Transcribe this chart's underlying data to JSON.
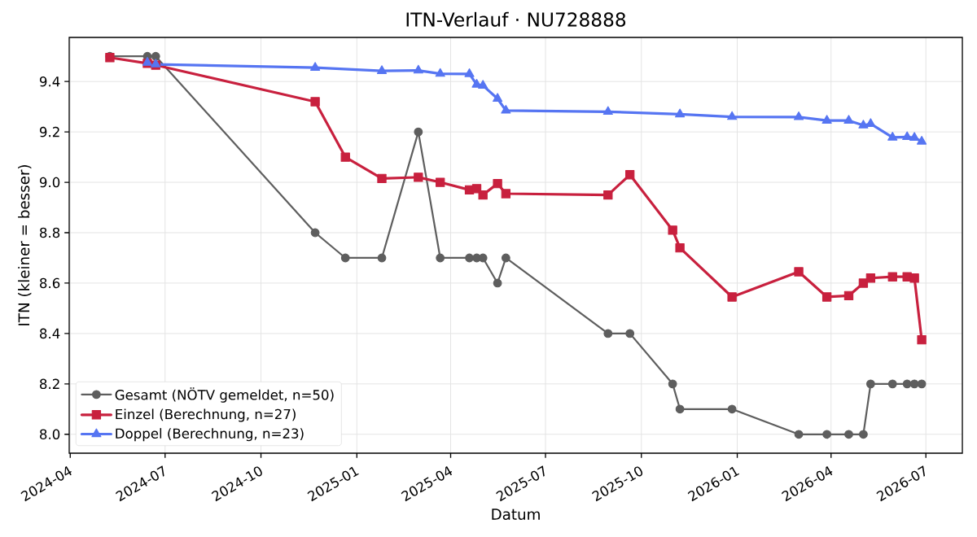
{
  "chart_data": {
    "type": "line",
    "title": "ITN-Verlauf · NU728888",
    "xlabel": "Datum",
    "ylabel": "ITN (kleiner = besser)",
    "xlim": [
      "2024-03-31",
      "2026-08-05"
    ],
    "xticks": [
      "2024-04",
      "2024-07",
      "2024-10",
      "2025-01",
      "2025-04",
      "2025-07",
      "2025-10",
      "2026-01",
      "2026-04",
      "2026-07"
    ],
    "ylim": [
      7.925,
      9.575
    ],
    "yticks": [
      {
        "value": 8,
        "label": "8.0"
      },
      8.2,
      8.4,
      8.6,
      8.8,
      {
        "value": 9,
        "label": "9.0"
      },
      9.2,
      9.4
    ],
    "grid": true,
    "legend": "bottom left",
    "line_style": "solid",
    "series": [
      {
        "name": "Gesamt (NÖTV gemeldet, n=50)",
        "color": "#5e5e5e",
        "marker": "circle",
        "x": [
          "2024-05-09",
          "2024-06-14",
          "2024-06-22",
          "2024-11-22",
          "2024-12-21",
          "2025-01-25",
          "2025-03-01",
          "2025-03-22",
          "2025-04-19",
          "2025-04-26",
          "2025-05-02",
          "2025-05-16",
          "2025-05-24",
          "2025-08-30",
          "2025-09-20",
          "2025-10-31",
          "2025-11-07",
          "2025-12-27",
          "2026-03-01",
          "2026-03-28",
          "2026-04-18",
          "2026-05-02",
          "2026-05-09",
          "2026-05-30",
          "2026-06-13",
          "2026-06-20",
          "2026-06-27"
        ],
        "values": [
          9.5,
          9.5,
          9.5,
          8.8,
          8.7,
          8.7,
          9.2,
          8.7,
          8.7,
          8.7,
          8.7,
          8.6,
          8.7,
          8.4,
          8.4,
          8.2,
          8.1,
          8.1,
          8.0,
          8.0,
          8.0,
          8.0,
          8.2,
          8.2,
          8.2,
          8.2,
          8.2
        ]
      },
      {
        "name": "Einzel (Berechnung, n=27)",
        "color": "#c8203e",
        "marker": "square",
        "x": [
          "2024-05-09",
          "2024-06-14",
          "2024-06-22",
          "2024-11-22",
          "2024-12-21",
          "2025-01-25",
          "2025-03-01",
          "2025-03-22",
          "2025-04-19",
          "2025-04-26",
          "2025-05-02",
          "2025-05-16",
          "2025-05-24",
          "2025-08-30",
          "2025-09-20",
          "2025-10-31",
          "2025-11-07",
          "2025-12-27",
          "2026-03-01",
          "2026-03-28",
          "2026-04-18",
          "2026-05-02",
          "2026-05-09",
          "2026-05-30",
          "2026-06-13",
          "2026-06-20",
          "2026-06-27"
        ],
        "values": [
          9.495,
          9.472,
          9.465,
          9.32,
          9.1,
          9.015,
          9.02,
          9.0,
          8.97,
          8.975,
          8.95,
          8.995,
          8.955,
          8.95,
          9.03,
          8.81,
          8.74,
          8.545,
          8.645,
          8.545,
          8.55,
          8.6,
          8.62,
          8.625,
          8.625,
          8.62,
          8.375
        ]
      },
      {
        "name": "Doppel (Berechnung, n=23)",
        "color": "#5675f2",
        "marker": "triangle",
        "x": [
          "2024-06-14",
          "2024-06-22",
          "2024-11-22",
          "2025-01-25",
          "2025-03-01",
          "2025-03-22",
          "2025-04-19",
          "2025-04-26",
          "2025-05-02",
          "2025-05-16",
          "2025-05-24",
          "2025-08-30",
          "2025-11-07",
          "2025-12-27",
          "2026-03-01",
          "2026-03-28",
          "2026-04-18",
          "2026-05-02",
          "2026-05-09",
          "2026-05-30",
          "2026-06-13",
          "2026-06-20",
          "2026-06-27"
        ],
        "values": [
          9.475,
          9.468,
          9.455,
          9.442,
          9.444,
          9.431,
          9.43,
          9.388,
          9.384,
          9.332,
          9.285,
          9.28,
          9.27,
          9.26,
          9.259,
          9.245,
          9.245,
          9.226,
          9.232,
          9.178,
          9.18,
          9.177,
          9.162
        ]
      }
    ]
  }
}
